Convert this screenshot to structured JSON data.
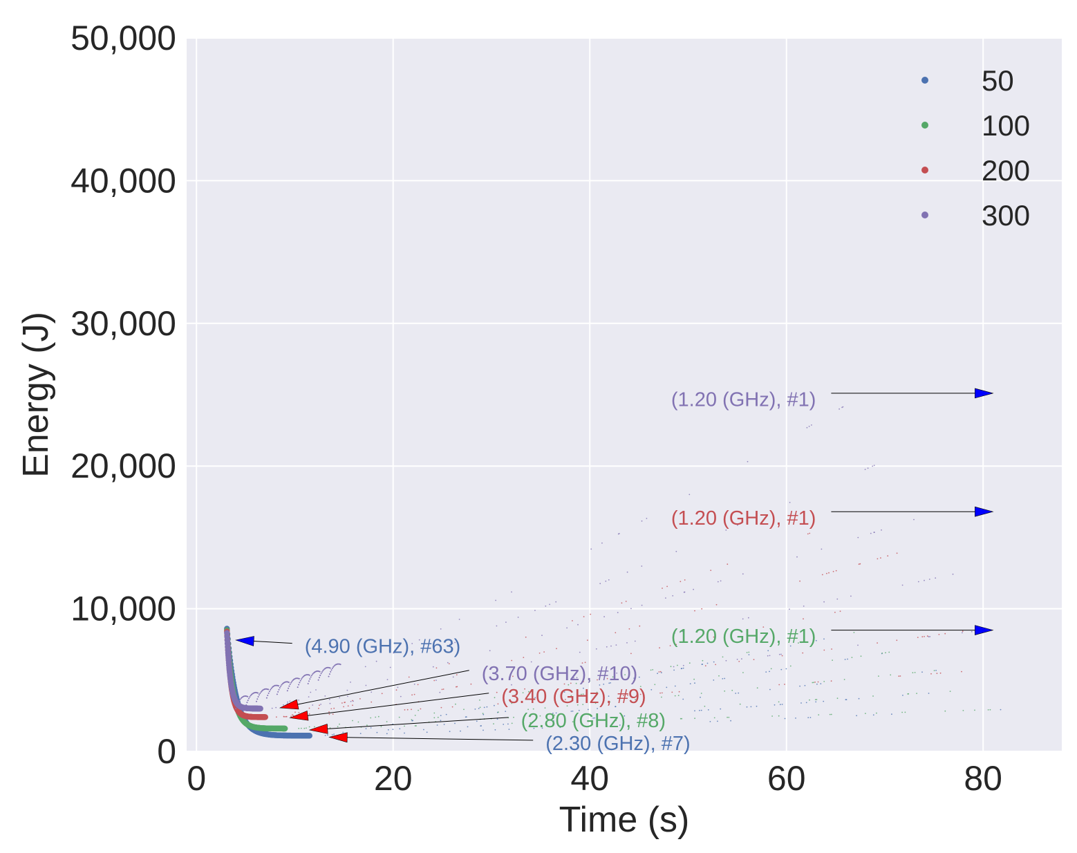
{
  "chart_data": {
    "type": "scatter",
    "xlabel": "Time (s)",
    "ylabel": "Energy (J)",
    "xlim": [
      -1,
      88
    ],
    "ylim": [
      0,
      50000
    ],
    "xticks": [
      0,
      20,
      40,
      60,
      80
    ],
    "xtick_labels": [
      "0",
      "20",
      "40",
      "60",
      "80"
    ],
    "yticks": [
      0,
      10000,
      20000,
      30000,
      40000,
      50000
    ],
    "ytick_labels": [
      "0",
      "10,000",
      "20,000",
      "30,000",
      "40,000",
      "50,000"
    ],
    "grid": true,
    "legend_position": "top-right",
    "series": [
      {
        "name": "50",
        "color": "#4c72b0",
        "knee": [
          11.5,
          1100
        ],
        "highfreq": [
          3.1,
          8600
        ],
        "lowfreq": [
          83.5,
          8500
        ]
      },
      {
        "name": "100",
        "color": "#55a868",
        "knee": [
          9.0,
          1600
        ],
        "highfreq": [
          3.1,
          8500
        ],
        "lowfreq": [
          83.5,
          8500
        ]
      },
      {
        "name": "200",
        "color": "#c44e52",
        "knee": [
          7.0,
          2400
        ],
        "highfreq": [
          3.1,
          8400
        ],
        "lowfreq": [
          83.5,
          16800
        ]
      },
      {
        "name": "300",
        "color": "#8172b2",
        "knee": [
          6.5,
          3000
        ],
        "highfreq": [
          3.1,
          8300
        ],
        "lowfreq": [
          83.5,
          25100
        ]
      }
    ],
    "annotations": [
      {
        "text": "(4.90 (GHz), #63)",
        "series": 0,
        "arrow": "blue",
        "point": [
          4,
          7800
        ],
        "text_pos": [
          11,
          6900
        ],
        "anchor": "start"
      },
      {
        "text": "(3.70 (GHz), #10)",
        "series": 3,
        "arrow": "red",
        "point": [
          8.5,
          3050
        ],
        "text_pos": [
          29,
          5000
        ],
        "anchor": "start"
      },
      {
        "text": "(3.40 (GHz), #9)",
        "series": 2,
        "arrow": "red",
        "point": [
          9.5,
          2350
        ],
        "text_pos": [
          31,
          3400
        ],
        "anchor": "start"
      },
      {
        "text": "(2.80 (GHz), #8)",
        "series": 1,
        "arrow": "red",
        "point": [
          11.5,
          1500
        ],
        "text_pos": [
          33,
          1700
        ],
        "anchor": "start"
      },
      {
        "text": "(2.30 (GHz), #7)",
        "series": 0,
        "arrow": "red",
        "point": [
          13.5,
          1000
        ],
        "text_pos": [
          35.5,
          100
        ],
        "anchor": "start"
      },
      {
        "text": "(1.20 (GHz), #1)",
        "series": 3,
        "arrow": "blue",
        "point": [
          81,
          25100
        ],
        "text_pos": [
          63,
          24200
        ],
        "anchor": "end"
      },
      {
        "text": "(1.20 (GHz), #1)",
        "series": 2,
        "arrow": "blue",
        "point": [
          81,
          16800
        ],
        "text_pos": [
          63,
          15900
        ],
        "anchor": "end"
      },
      {
        "text": "(1.20 (GHz), #1)",
        "series": 1,
        "arrow": "blue",
        "point": [
          81,
          8500
        ],
        "text_pos": [
          63,
          7600
        ],
        "anchor": "end"
      }
    ]
  }
}
